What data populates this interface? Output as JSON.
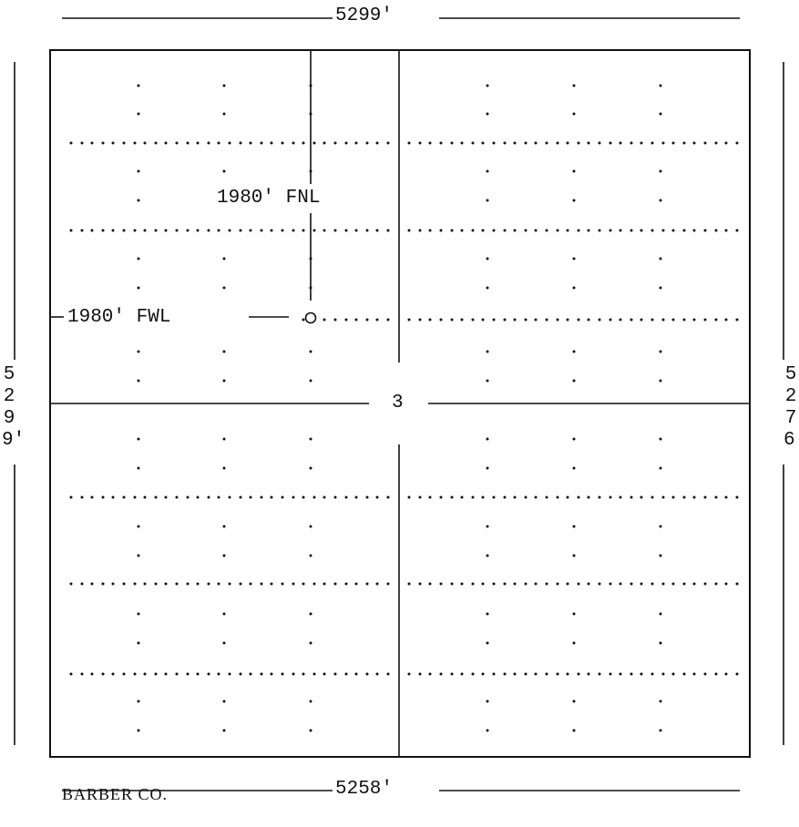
{
  "plat": {
    "top_dimension": "5299'",
    "bottom_dimension": "5258'",
    "left_dimension": "5299'",
    "right_dimension": "5276'",
    "section_number": "3",
    "fnl_label": "1980' FNL",
    "fwl_label": "1980' FWL",
    "county_label": "BARBER CO.",
    "well_symbol": "circle-well-location"
  }
}
